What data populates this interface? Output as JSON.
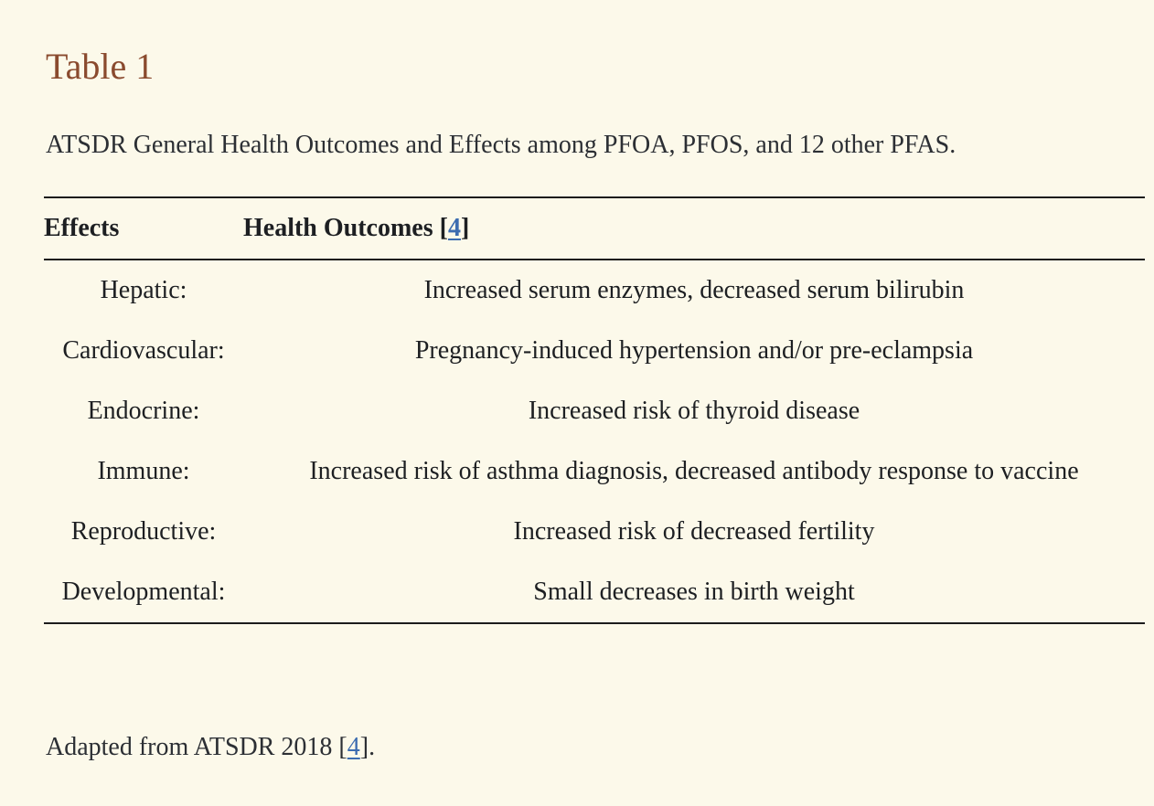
{
  "colors": {
    "background": "#FCF9EA",
    "table_label_brown": "#8A4A2E",
    "link_blue": "#3C6CB0",
    "rule_black": "#1C1C1C",
    "body_text": "#2C2F34"
  },
  "table_label": "Table 1",
  "caption": "ATSDR General Health Outcomes and Effects among PFOA, PFOS, and 12 other PFAS.",
  "table": {
    "header": {
      "effects": "Effects",
      "outcomes_prefix": "Health Outcomes [",
      "outcomes_ref": "4",
      "outcomes_suffix": "]"
    },
    "rows": [
      {
        "effect": "Hepatic:",
        "outcome": "Increased serum enzymes, decreased serum bilirubin"
      },
      {
        "effect": "Cardiovascular:",
        "outcome": "Pregnancy-induced hypertension and/or pre-eclampsia"
      },
      {
        "effect": "Endocrine:",
        "outcome": "Increased risk of thyroid disease"
      },
      {
        "effect": "Immune:",
        "outcome": "Increased risk of asthma diagnosis, decreased antibody response to vaccine"
      },
      {
        "effect": "Reproductive:",
        "outcome": "Increased risk of decreased fertility"
      },
      {
        "effect": "Developmental:",
        "outcome": "Small decreases in birth weight"
      }
    ]
  },
  "footnote": {
    "prefix": "Adapted from ATSDR 2018 [",
    "ref": "4",
    "suffix": "]."
  }
}
